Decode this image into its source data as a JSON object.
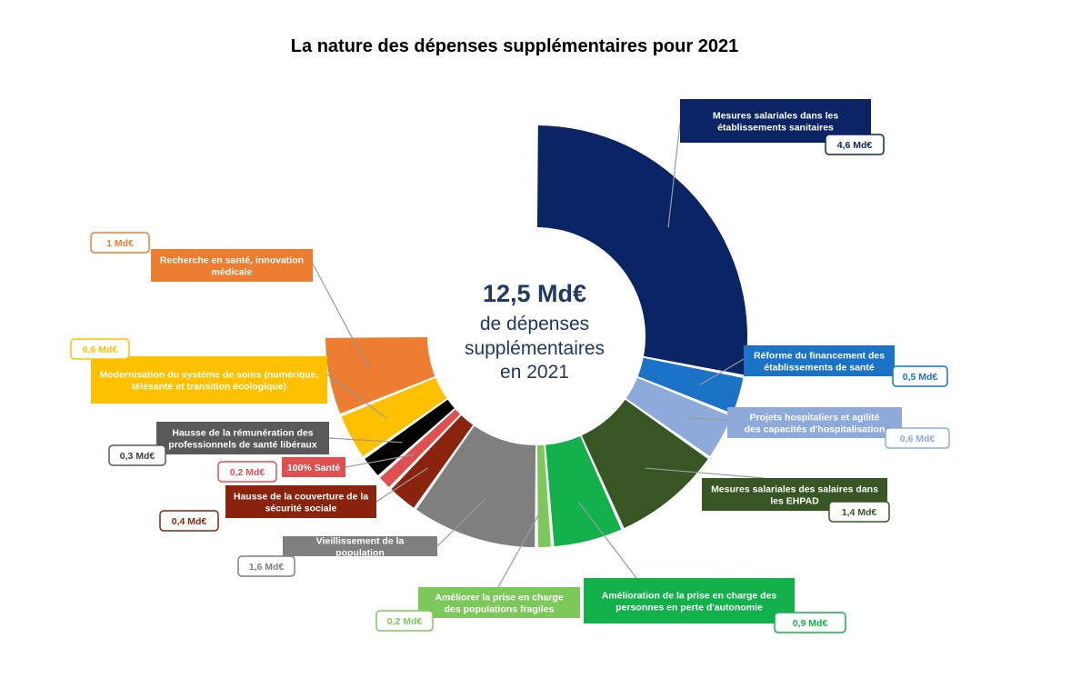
{
  "title": "La nature des dépenses supplémentaires pour 2021",
  "center": {
    "total": "12,5 Md€",
    "line1": "de dépenses",
    "line2": "supplémentaires",
    "line3": "en 2021"
  },
  "chart_data": {
    "type": "pie",
    "title": "La nature des dépenses supplémentaires pour 2021",
    "total": 12.5,
    "unit": "Md€",
    "slices": [
      {
        "label": "Mesures salariales dans les établissements sanitaires",
        "value": 4.6,
        "value_label": "4,6 Md€",
        "color": "#0b2466"
      },
      {
        "label": "Réforme du financement des établissements de santé",
        "value": 0.5,
        "value_label": "0,5 Md€",
        "color": "#1a73c7"
      },
      {
        "label": "Projets hospitaliers et agilité des capacités d'hospitalisation",
        "value": 0.6,
        "value_label": "0,6 Md€",
        "color": "#8eaadb"
      },
      {
        "label": "Mesures salariales des salaires dans les EHPAD",
        "value": 1.4,
        "value_label": "1,4 Md€",
        "color": "#375623"
      },
      {
        "label": "Amélioration de la prise en charge des personnes en perte d'autonomie",
        "value": 0.9,
        "value_label": "0,9 Md€",
        "color": "#12b14b"
      },
      {
        "label": "Améliorer la prise en charge des populations fragiles",
        "value": 0.2,
        "value_label": "0,2 Md€",
        "color": "#7cc85a"
      },
      {
        "label": "Vieillissement de la population",
        "value": 1.6,
        "value_label": "1,6 Md€",
        "color": "#7f7f7f"
      },
      {
        "label": "Hausse de la couverture de la sécurité sociale",
        "value": 0.4,
        "value_label": "0,4 Md€",
        "color": "#8b240e"
      },
      {
        "label": "100% Santé",
        "value": 0.2,
        "value_label": "0,2 Md€",
        "color": "#e05050"
      },
      {
        "label": "Hausse de la rémunération des professionnels de santé libéraux",
        "value": 0.3,
        "value_label": "0,3 Md€",
        "color": "#000000"
      },
      {
        "label": "Modernisation du système de soins (numérique, télésanté et transition écologique)",
        "value": 0.6,
        "value_label": "0,6 Md€",
        "color": "#ffc000"
      },
      {
        "label": "Recherche en santé, innovation médicale",
        "value": 1.0,
        "value_label": "1 Md€",
        "color": "#ed7d31"
      }
    ]
  }
}
